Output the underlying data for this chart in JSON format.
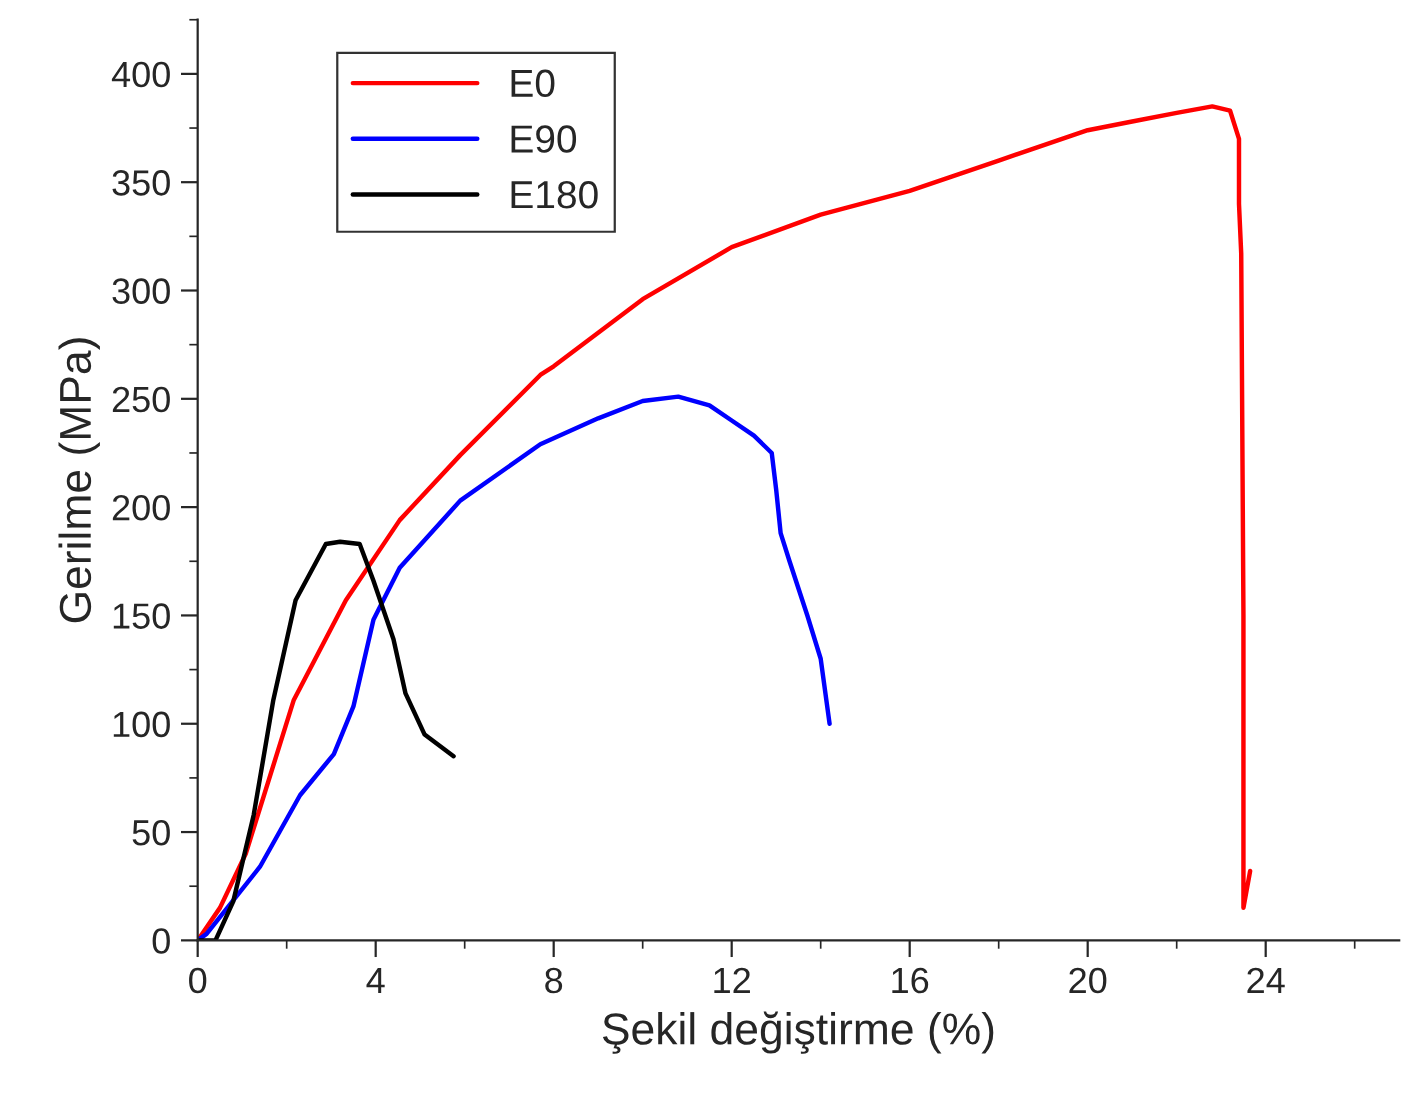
{
  "chart_data": {
    "type": "line",
    "xlabel": "Şekil değiştirme (%)",
    "ylabel": "Gerilme (MPa)",
    "xlim": [
      0,
      27
    ],
    "ylim": [
      0,
      425
    ],
    "xticks": [
      0,
      4,
      8,
      12,
      16,
      20,
      24
    ],
    "yticks": [
      0,
      50,
      100,
      150,
      200,
      250,
      300,
      350,
      400
    ],
    "grid": false,
    "legend": "top left",
    "marker": "none",
    "line_style": "solid",
    "series": [
      {
        "name": "E0",
        "color": "#ff0000",
        "x": [
          0,
          0.5,
          1.08,
          2.16,
          3.33,
          4.54,
          5.9,
          7.7,
          8,
          10,
          12,
          14,
          16,
          18,
          20,
          21,
          22,
          22.8,
          23.2,
          23.4,
          23.4,
          23.45,
          23.5,
          23.5,
          23.65
        ],
        "values": [
          0,
          15,
          40,
          111,
          157,
          194,
          224,
          261,
          265,
          296,
          320,
          335,
          346,
          360,
          374,
          378,
          382,
          385,
          383,
          370,
          340,
          317,
          150,
          15,
          32
        ]
      },
      {
        "name": "E90",
        "color": "#0000ff",
        "x": [
          0,
          0.2,
          1.4,
          2.3,
          3.06,
          3.5,
          3.95,
          4.54,
          5.9,
          7.7,
          9,
          10,
          10.8,
          11.5,
          12,
          12.5,
          12.9,
          13.0,
          13.1,
          13.3,
          13.7,
          14.0,
          14.2
        ],
        "values": [
          0,
          3,
          34,
          67,
          86,
          108,
          148,
          172,
          203,
          229,
          241,
          249,
          251,
          247,
          240,
          233,
          225,
          208,
          188,
          175,
          150,
          130,
          100
        ]
      },
      {
        "name": "E180",
        "color": "#000000",
        "x": [
          0,
          0.4,
          0.8,
          1.26,
          1.7,
          2.2,
          2.88,
          3.2,
          3.64,
          3.95,
          4.4,
          4.67,
          5.1,
          5.75
        ],
        "values": [
          0,
          0,
          18,
          58,
          111,
          157,
          183,
          184,
          183,
          166,
          139,
          114,
          95,
          85
        ]
      }
    ]
  }
}
